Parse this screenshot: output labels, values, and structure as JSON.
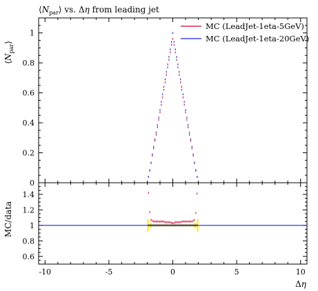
{
  "chart_data": [
    {
      "type": "scatter",
      "panel": "main",
      "title": "⟨N_par⟩ vs. Δη from leading jet",
      "ylabel": "⟨N_par⟩",
      "xlabel": "",
      "xlim": [
        -10.5,
        10.5
      ],
      "ylim": [
        0,
        1.1
      ],
      "x_ticks": [
        -10,
        -5,
        0,
        5,
        10
      ],
      "y_ticks": [
        0,
        0.2,
        0.4,
        0.6,
        0.8,
        1
      ],
      "y_tick_labels": [
        "0",
        "0.2",
        "0.4",
        "0.6",
        "0.8",
        "1"
      ],
      "legend_position": "top-right",
      "series": [
        {
          "name": "MC (LeadJet-1eta-5GeV)",
          "color": "#d0002a",
          "x": [
            -1.9,
            -1.8,
            -1.7,
            -1.6,
            -1.5,
            -1.4,
            -1.3,
            -1.2,
            -1.1,
            -1.0,
            -0.9,
            -0.8,
            -0.7,
            -0.6,
            -0.5,
            -0.4,
            -0.3,
            -0.2,
            -0.1,
            0.0,
            0.1,
            0.2,
            0.3,
            0.4,
            0.5,
            0.6,
            0.7,
            0.8,
            0.9,
            1.0,
            1.1,
            1.2,
            1.3,
            1.4,
            1.5,
            1.6,
            1.7,
            1.8,
            1.9
          ],
          "y": [
            0.04,
            0.08,
            0.13,
            0.18,
            0.23,
            0.28,
            0.32,
            0.37,
            0.42,
            0.47,
            0.52,
            0.57,
            0.62,
            0.67,
            0.72,
            0.77,
            0.82,
            0.87,
            0.92,
            0.96,
            0.92,
            0.87,
            0.82,
            0.77,
            0.72,
            0.67,
            0.62,
            0.57,
            0.52,
            0.47,
            0.42,
            0.37,
            0.32,
            0.28,
            0.23,
            0.18,
            0.13,
            0.08,
            0.04
          ]
        },
        {
          "name": "MC (LeadJet-1eta-20GeV)",
          "color": "#2020d8",
          "x": [
            -1.9,
            -1.8,
            -1.7,
            -1.6,
            -1.5,
            -1.4,
            -1.3,
            -1.2,
            -1.1,
            -1.0,
            -0.9,
            -0.8,
            -0.7,
            -0.6,
            -0.5,
            -0.4,
            -0.3,
            -0.2,
            -0.1,
            0.0,
            0.1,
            0.2,
            0.3,
            0.4,
            0.5,
            0.6,
            0.7,
            0.8,
            0.9,
            1.0,
            1.1,
            1.2,
            1.3,
            1.4,
            1.5,
            1.6,
            1.7,
            1.8,
            1.9
          ],
          "y": [
            0.04,
            0.085,
            0.135,
            0.19,
            0.24,
            0.29,
            0.335,
            0.385,
            0.435,
            0.485,
            0.54,
            0.59,
            0.64,
            0.69,
            0.74,
            0.79,
            0.84,
            0.89,
            0.94,
            1.0,
            0.94,
            0.89,
            0.84,
            0.79,
            0.74,
            0.69,
            0.64,
            0.59,
            0.54,
            0.485,
            0.435,
            0.385,
            0.335,
            0.29,
            0.24,
            0.19,
            0.135,
            0.085,
            0.04
          ]
        }
      ]
    },
    {
      "type": "scatter",
      "panel": "ratio",
      "ylabel": "MC/data",
      "xlabel": "Δη",
      "xlim": [
        -10.5,
        10.5
      ],
      "ylim": [
        0.5,
        1.55
      ],
      "x_ticks": [
        -10,
        -5,
        0,
        5,
        10
      ],
      "x_tick_labels": [
        "-10",
        "-5",
        "0",
        "5",
        "10"
      ],
      "y_ticks": [
        0.6,
        0.8,
        1,
        1.2,
        1.4
      ],
      "y_tick_labels": [
        "0.6",
        "0.8",
        "1",
        "1.2",
        "1.4"
      ],
      "band": {
        "xmin": -1.95,
        "xmax": 1.95,
        "color": "#ffee00"
      },
      "series": [
        {
          "name": "MC (LeadJet-1eta-5GeV)",
          "color": "#d0002a",
          "x": [
            -1.9,
            -1.8,
            -1.7,
            -1.6,
            -1.5,
            -1.4,
            -1.3,
            -1.2,
            -1.1,
            -1.0,
            -0.9,
            -0.8,
            -0.7,
            -0.6,
            -0.5,
            -0.4,
            -0.3,
            -0.2,
            -0.1,
            0.0,
            0.1,
            0.2,
            0.3,
            0.4,
            0.5,
            0.6,
            0.7,
            0.8,
            0.9,
            1.0,
            1.1,
            1.2,
            1.3,
            1.4,
            1.5,
            1.6,
            1.7,
            1.8,
            1.9
          ],
          "y": [
            1.42,
            1.17,
            1.07,
            1.06,
            1.05,
            1.05,
            1.05,
            1.05,
            1.05,
            1.05,
            1.05,
            1.05,
            1.05,
            1.04,
            1.04,
            1.04,
            1.04,
            1.04,
            1.03,
            1.03,
            1.03,
            1.04,
            1.04,
            1.04,
            1.04,
            1.04,
            1.05,
            1.05,
            1.05,
            1.05,
            1.05,
            1.05,
            1.05,
            1.05,
            1.05,
            1.06,
            1.07,
            1.16,
            1.41
          ]
        },
        {
          "name": "MC (LeadJet-1eta-20GeV)",
          "color": "#2020d8",
          "x": [
            -1.9,
            -1.8,
            -1.7,
            -1.6,
            -1.5,
            -1.4,
            -1.3,
            -1.2,
            -1.1,
            -1.0,
            -0.9,
            -0.8,
            -0.7,
            -0.6,
            -0.5,
            -0.4,
            -0.3,
            -0.2,
            -0.1,
            0.0,
            0.1,
            0.2,
            0.3,
            0.4,
            0.5,
            0.6,
            0.7,
            0.8,
            0.9,
            1.0,
            1.1,
            1.2,
            1.3,
            1.4,
            1.5,
            1.6,
            1.7,
            1.8,
            1.9
          ],
          "y": [
            1.0,
            1.0,
            1.0,
            1.0,
            1.0,
            1.0,
            1.0,
            1.0,
            1.0,
            1.0,
            1.0,
            1.0,
            1.0,
            1.0,
            1.0,
            1.0,
            1.0,
            1.0,
            1.0,
            1.0,
            1.0,
            1.0,
            1.0,
            1.0,
            1.0,
            1.0,
            1.0,
            1.0,
            1.0,
            1.0,
            1.0,
            1.0,
            1.0,
            1.0,
            1.0,
            1.0,
            1.0,
            1.0,
            1.0
          ]
        }
      ]
    }
  ]
}
